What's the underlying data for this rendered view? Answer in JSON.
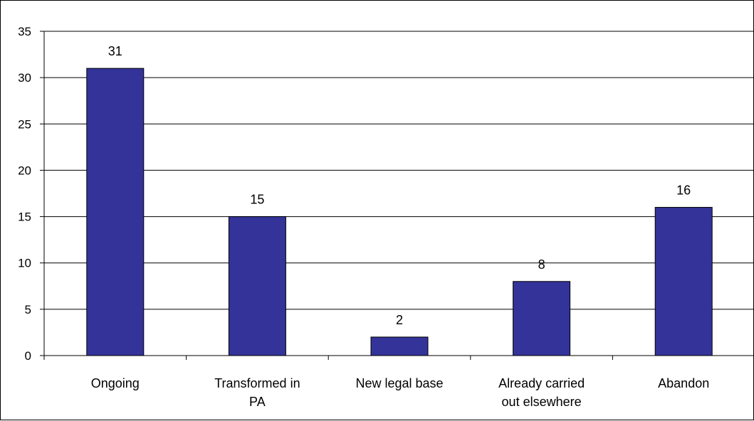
{
  "chart_data": {
    "type": "bar",
    "categories": [
      [
        "Ongoing"
      ],
      [
        "Transformed in",
        "PA"
      ],
      [
        "New legal base"
      ],
      [
        "Already carried",
        "out elsewhere"
      ],
      [
        "Abandon"
      ]
    ],
    "values": [
      31,
      15,
      2,
      8,
      16
    ],
    "data_labels": [
      "31",
      "15",
      "2",
      "8",
      "16"
    ],
    "ylim": [
      0,
      35
    ],
    "yticks": [
      0,
      5,
      10,
      15,
      20,
      25,
      30,
      35
    ],
    "grid": true,
    "legend": "none",
    "bar_color": "#333399",
    "bar_outline": "#000000",
    "grid_color": "#000000"
  }
}
